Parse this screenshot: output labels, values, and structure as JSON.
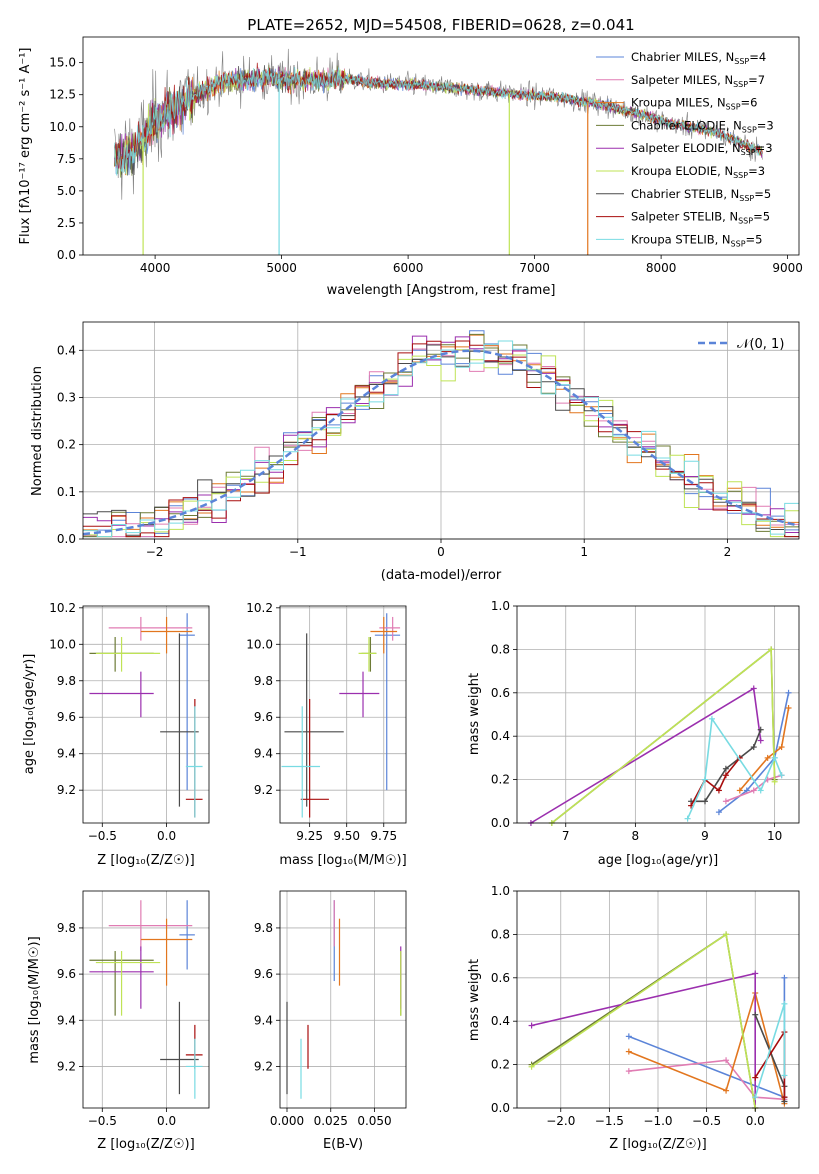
{
  "colors": {
    "chabrier_miles": "#5b84d8",
    "salpeter_miles": "#e07cb3",
    "kroupa_miles": "#e2761f",
    "chabrier_elodie": "#6d7b36",
    "salpeter_elodie": "#9b2fae",
    "kroupa_elodie": "#bfe356",
    "chabrier_stelib": "#4a4a4a",
    "salpeter_stelib": "#a80d0d",
    "kroupa_stelib": "#78dbe2"
  },
  "chart_data": [
    {
      "id": "spectrum",
      "type": "line",
      "title": "PLATE=2652, MJD=54508, FIBERID=0628, z=0.041",
      "xlabel": "wavelength [Angstrom, rest frame]",
      "ylabel": "Flux [fλ10⁻¹⁷ erg cm⁻² s⁻¹ A⁻¹]",
      "xlim": [
        3430,
        9090
      ],
      "ylim": [
        0,
        17
      ],
      "xticks": [
        4000,
        5000,
        6000,
        7000,
        8000,
        9000
      ],
      "yticks": [
        0.0,
        2.5,
        5.0,
        7.5,
        10.0,
        12.5,
        15.0
      ],
      "legend_position": "top-right",
      "legend": [
        {
          "label": "Chabrier MILES, N",
          "sub": "SSP",
          "suffix": "=4",
          "color": "#5b84d8"
        },
        {
          "label": "Salpeter MILES, N",
          "sub": "SSP",
          "suffix": "=7",
          "color": "#e07cb3"
        },
        {
          "label": "Kroupa MILES, N",
          "sub": "SSP",
          "suffix": "=6",
          "color": "#e2761f"
        },
        {
          "label": "Chabrier ELODIE, N",
          "sub": "SSP",
          "suffix": "=3",
          "color": "#6d7b36"
        },
        {
          "label": "Salpeter ELODIE, N",
          "sub": "SSP",
          "suffix": "=3",
          "color": "#9b2fae"
        },
        {
          "label": "Kroupa ELODIE, N",
          "sub": "SSP",
          "suffix": "=3",
          "color": "#bfe356"
        },
        {
          "label": "Chabrier STELIB, N",
          "sub": "SSP",
          "suffix": "=5",
          "color": "#4a4a4a"
        },
        {
          "label": "Salpeter STELIB, N",
          "sub": "SSP",
          "suffix": "=5",
          "color": "#a80d0d"
        },
        {
          "label": "Kroupa STELIB, N",
          "sub": "SSP",
          "suffix": "=5",
          "color": "#78dbe2"
        }
      ],
      "continuum": {
        "x": [
          3680,
          3800,
          3900,
          4000,
          4100,
          4200,
          4300,
          4400,
          4500,
          4700,
          4900,
          5100,
          5300,
          5500,
          5700,
          6000,
          6300,
          6600,
          6900,
          7200,
          7500,
          7800,
          8100,
          8400,
          8600,
          8800
        ],
        "y": [
          7.5,
          8.0,
          9.0,
          10.5,
          11.3,
          11.7,
          12.3,
          12.9,
          13.4,
          13.7,
          13.8,
          13.6,
          13.6,
          13.8,
          13.4,
          13.3,
          13.1,
          12.8,
          12.5,
          12.3,
          11.8,
          11.1,
          10.2,
          9.7,
          8.9,
          8.0
        ]
      },
      "dropouts": [
        {
          "x": 3905,
          "y_bottom": 0.0,
          "series": "kroupa_elodie"
        },
        {
          "x": 4980,
          "y_bottom": 0.0,
          "series": "kroupa_stelib"
        },
        {
          "x": 6800,
          "y_bottom": 0.0,
          "series": "kroupa_elodie"
        },
        {
          "x": 7420,
          "y_bottom": 0.0,
          "series": "kroupa_miles"
        }
      ]
    },
    {
      "id": "residuals",
      "type": "histogram",
      "xlabel": "(data-model)/error",
      "ylabel": "Normed distribution",
      "xlim": [
        -2.5,
        2.5
      ],
      "ylim": [
        0,
        0.46
      ],
      "xticks": [
        -2,
        -1,
        0,
        1,
        2
      ],
      "xtick_labels": [
        "−2",
        "−1",
        "0",
        "1",
        "2"
      ],
      "yticks": [
        0.0,
        0.1,
        0.2,
        0.3,
        0.4
      ],
      "bin_width": 0.1,
      "bin_start": -2.5,
      "legend_position": "top-right",
      "normal_curve": {
        "label": "𝒩(0, 1)",
        "color": "#5b84d8",
        "style": "dashed",
        "mean": 0.2,
        "sigma": 1.0
      }
    },
    {
      "id": "z-age",
      "type": "errorbar",
      "xlabel": "Z [log₁₀(Z/Z☉)]",
      "ylabel": "age  [log₁₀(age/yr)]",
      "xlim": [
        -0.65,
        0.33
      ],
      "ylim": [
        9.02,
        10.21
      ],
      "xticks": [
        -0.5,
        0.0
      ],
      "xtick_labels": [
        "−0.5",
        "0.0"
      ],
      "yticks": [
        9.2,
        9.4,
        9.6,
        9.8,
        10.0,
        10.2
      ]
    },
    {
      "id": "mass-age",
      "type": "errorbar",
      "xlabel": "mass [log₁₀(M/M☉)]",
      "ylabel": "",
      "xlim": [
        9.05,
        9.9
      ],
      "ylim": [
        9.02,
        10.21
      ],
      "xticks": [
        9.25,
        9.5,
        9.75
      ],
      "xtick_labels": [
        "9.25",
        "9.50",
        "9.75"
      ],
      "yticks": [
        9.2,
        9.4,
        9.6,
        9.8,
        10.0,
        10.2
      ]
    },
    {
      "id": "age-weight",
      "type": "line",
      "xlabel": "age  [log₁₀(age/yr)]",
      "ylabel": "mass weight",
      "xlim": [
        6.3,
        10.35
      ],
      "ylim": [
        0,
        1.0
      ],
      "xticks": [
        7,
        8,
        9,
        10
      ],
      "yticks": [
        0.0,
        0.2,
        0.4,
        0.6,
        0.8,
        1.0
      ]
    },
    {
      "id": "z-mass",
      "type": "errorbar",
      "xlabel": "Z [log₁₀(Z/Z☉)]",
      "ylabel": "mass [log₁₀(M/M☉)]",
      "xlim": [
        -0.65,
        0.33
      ],
      "ylim": [
        9.02,
        9.96
      ],
      "xticks": [
        -0.5,
        0.0
      ],
      "xtick_labels": [
        "−0.5",
        "0.0"
      ],
      "yticks": [
        9.2,
        9.4,
        9.6,
        9.8
      ]
    },
    {
      "id": "ebv-mass",
      "type": "errorbar",
      "xlabel": "E(B-V)",
      "ylabel": "",
      "xlim": [
        -0.004,
        0.068
      ],
      "ylim": [
        9.02,
        9.96
      ],
      "xticks": [
        0.0,
        0.025,
        0.05
      ],
      "xtick_labels": [
        "0.000",
        "0.025",
        "0.050"
      ],
      "yticks": [
        9.2,
        9.4,
        9.6,
        9.8
      ]
    },
    {
      "id": "z-weight",
      "type": "line",
      "xlabel": "Z [log₁₀(Z/Z☉)]",
      "ylabel": "mass weight",
      "xlim": [
        -2.45,
        0.45
      ],
      "ylim": [
        0,
        1.0
      ],
      "xticks": [
        -2.0,
        -1.5,
        -1.0,
        -0.5,
        0.0
      ],
      "xtick_labels": [
        "−2.0",
        "−1.5",
        "−1.0",
        "−0.5",
        "0.0"
      ],
      "yticks": [
        0.0,
        0.2,
        0.4,
        0.6,
        0.8,
        1.0
      ]
    }
  ],
  "fits": [
    {
      "key": "chabrier_miles",
      "age": 10.05,
      "age_lo": 9.2,
      "age_hi": 10.17,
      "Z": 0.16,
      "Z_lo": 0.1,
      "Z_hi": 0.22,
      "mass": 9.77,
      "mass_lo": 9.69,
      "mass_hi": 9.86,
      "mass_err_lo": 9.62,
      "mass_err_hi": 9.92,
      "ebv": 0.027,
      "ebv_lo": 9.57,
      "ebv_hi": 9.92,
      "ssp_age": [
        9.2,
        9.6,
        10.0,
        10.2
      ],
      "ssp_w": [
        0.05,
        0.15,
        0.3,
        0.6
      ],
      "ssp_Z": [
        -1.3,
        0.3,
        0.3,
        0.3
      ],
      "ssp_Zw": [
        0.33,
        0.05,
        0.03,
        0.6
      ]
    },
    {
      "key": "salpeter_miles",
      "age": 10.09,
      "age_lo": 10.02,
      "age_hi": 10.15,
      "Z": -0.2,
      "Z_lo": -0.45,
      "Z_hi": 0.2,
      "mass": 9.81,
      "mass_lo": 9.72,
      "mass_hi": 9.86,
      "mass_err_lo": 9.7,
      "mass_err_hi": 9.92,
      "ebv": 0.027,
      "ebv_lo": 9.72,
      "ebv_hi": 9.92,
      "ssp_age": [
        9.3,
        9.7,
        9.9,
        10.1
      ],
      "ssp_w": [
        0.1,
        0.15,
        0.2,
        0.22
      ],
      "ssp_Z": [
        -1.3,
        -0.3,
        0.0,
        0.3
      ],
      "ssp_Zw": [
        0.17,
        0.22,
        0.05,
        0.04
      ]
    },
    {
      "key": "kroupa_miles",
      "age": 10.07,
      "age_lo": 9.95,
      "age_hi": 10.15,
      "Z": 0.0,
      "Z_lo": -0.2,
      "Z_hi": 0.2,
      "mass": 9.75,
      "mass_lo": 9.66,
      "mass_hi": 9.84,
      "mass_err_lo": 9.55,
      "mass_err_hi": 9.84,
      "ebv": 0.03,
      "ebv_lo": 9.55,
      "ebv_hi": 9.84,
      "ssp_age": [
        9.5,
        9.9,
        10.1,
        10.2
      ],
      "ssp_w": [
        0.15,
        0.3,
        0.35,
        0.53
      ],
      "ssp_Z": [
        -1.3,
        -0.3,
        0.0,
        0.3
      ],
      "ssp_Zw": [
        0.26,
        0.08,
        0.53,
        0.02
      ]
    },
    {
      "key": "chabrier_elodie",
      "age": 9.95,
      "age_lo": 9.85,
      "age_hi": 10.04,
      "Z": -0.4,
      "Z_lo": -0.6,
      "Z_hi": -0.1,
      "mass": 9.66,
      "mass_lo": 9.6,
      "mass_hi": 9.7,
      "mass_err_lo": 9.42,
      "mass_err_hi": 9.7,
      "ebv": 0.065,
      "ebv_lo": 9.42,
      "ebv_hi": 9.7,
      "ssp_age": [
        6.8,
        9.95,
        10.0
      ],
      "ssp_w": [
        0.0,
        0.8,
        0.2
      ],
      "ssp_Z": [
        -2.3,
        -0.3,
        0.0
      ],
      "ssp_Zw": [
        0.2,
        0.8,
        0.0
      ]
    },
    {
      "key": "salpeter_elodie",
      "age": 9.73,
      "age_lo": 9.6,
      "age_hi": 9.85,
      "Z": -0.2,
      "Z_lo": -0.6,
      "Z_hi": -0.1,
      "mass": 9.61,
      "mass_lo": 9.45,
      "mass_hi": 9.72,
      "mass_err_lo": 9.45,
      "mass_err_hi": 9.72,
      "ebv": 0.065,
      "ebv_lo": 9.45,
      "ebv_hi": 9.72,
      "ssp_age": [
        6.5,
        9.7,
        9.8
      ],
      "ssp_w": [
        0.0,
        0.62,
        0.38
      ],
      "ssp_Z": [
        -2.3,
        0.0,
        0.0
      ],
      "ssp_Zw": [
        0.38,
        0.62,
        0.0
      ]
    },
    {
      "key": "kroupa_elodie",
      "age": 9.95,
      "age_lo": 9.85,
      "age_hi": 10.04,
      "Z": -0.35,
      "Z_lo": -0.55,
      "Z_hi": -0.05,
      "mass": 9.65,
      "mass_lo": 9.58,
      "mass_hi": 9.7,
      "mass_err_lo": 9.42,
      "mass_err_hi": 9.7,
      "ebv": 0.065,
      "ebv_lo": 9.42,
      "ebv_hi": 9.7,
      "ssp_age": [
        6.8,
        9.95,
        10.0
      ],
      "ssp_w": [
        0.0,
        0.8,
        0.19
      ],
      "ssp_Z": [
        -2.3,
        -0.3,
        0.0
      ],
      "ssp_Zw": [
        0.19,
        0.8,
        0.0
      ]
    },
    {
      "key": "chabrier_stelib",
      "age": 9.52,
      "age_lo": 9.11,
      "age_hi": 10.06,
      "Z": 0.1,
      "Z_lo": -0.05,
      "Z_hi": 0.25,
      "mass": 9.23,
      "mass_lo": 9.08,
      "mass_hi": 9.48,
      "mass_err_lo": 9.08,
      "mass_err_hi": 9.48,
      "ebv": 0.0,
      "ebv_lo": 9.08,
      "ebv_hi": 9.48,
      "ssp_age": [
        8.8,
        9.0,
        9.3,
        9.7,
        9.8
      ],
      "ssp_w": [
        0.1,
        0.1,
        0.25,
        0.35,
        0.43
      ],
      "ssp_Z": [
        0.0,
        0.3,
        0.3,
        0.3
      ],
      "ssp_Zw": [
        0.43,
        0.1,
        0.05,
        0.03
      ]
    },
    {
      "key": "salpeter_stelib",
      "age": 9.15,
      "age_lo": 9.05,
      "age_hi": 9.7,
      "Z": 0.22,
      "Z_lo": 0.15,
      "Z_hi": 0.28,
      "mass": 9.25,
      "mass_lo": 9.19,
      "mass_hi": 9.38,
      "mass_err_lo": 9.19,
      "mass_err_hi": 9.38,
      "ebv": 0.012,
      "ebv_lo": 9.19,
      "ebv_hi": 9.38,
      "ssp_age": [
        8.8,
        9.0,
        9.2,
        9.3,
        9.5
      ],
      "ssp_w": [
        0.08,
        0.2,
        0.15,
        0.22,
        0.3
      ],
      "ssp_Z": [
        0.0,
        0.3,
        0.3
      ],
      "ssp_Zw": [
        0.14,
        0.35,
        0.05
      ]
    },
    {
      "key": "kroupa_stelib",
      "age": 9.33,
      "age_lo": 9.05,
      "age_hi": 9.66,
      "Z": 0.22,
      "Z_lo": 0.15,
      "Z_hi": 0.28,
      "mass": 9.2,
      "mass_lo": 9.06,
      "mass_hi": 9.32,
      "mass_err_lo": 9.06,
      "mass_err_hi": 9.32,
      "ebv": 0.008,
      "ebv_lo": 9.06,
      "ebv_hi": 9.32,
      "ssp_age": [
        8.75,
        9.0,
        9.1,
        9.8,
        10.0,
        10.1
      ],
      "ssp_w": [
        0.02,
        0.2,
        0.48,
        0.15,
        0.3,
        0.22
      ],
      "ssp_Z": [
        0.0,
        0.3,
        0.3
      ],
      "ssp_Zw": [
        0.05,
        0.48,
        0.15
      ]
    }
  ]
}
